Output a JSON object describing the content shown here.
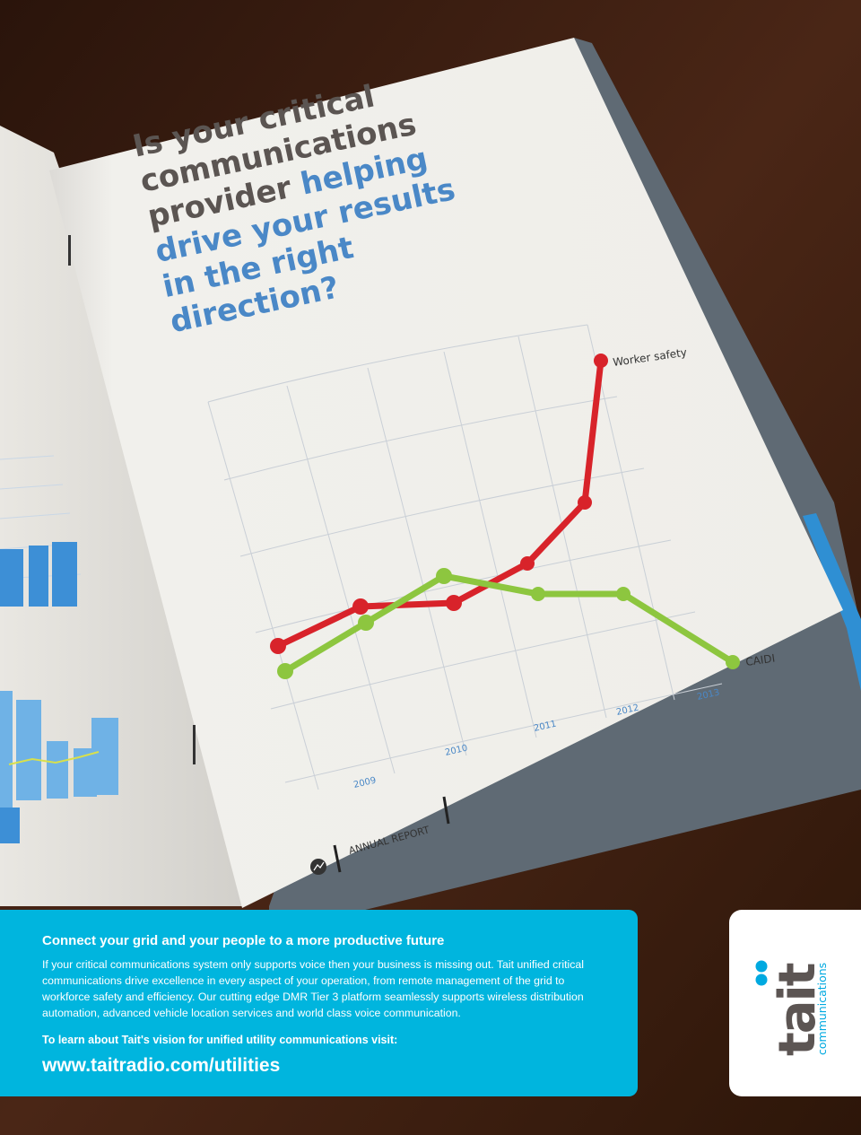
{
  "photo": {
    "headline_dark": "Is your critical communications provider",
    "headline_blue": "helping drive your results in the right direction?",
    "headline_lines": [
      {
        "dark": "Is your critical",
        "blue": ""
      },
      {
        "dark": "communications",
        "blue": ""
      },
      {
        "dark": "provider ",
        "blue": "helping"
      },
      {
        "dark": "",
        "blue": "drive your results"
      },
      {
        "dark": "",
        "blue": "in the right"
      },
      {
        "dark": "",
        "blue": "direction?"
      }
    ],
    "footer_label": "ANNUAL REPORT"
  },
  "chart_data": {
    "type": "line",
    "x": [
      "2009",
      "2010",
      "2011",
      "2012",
      "2013"
    ],
    "series": [
      {
        "name": "Worker safety",
        "color": "#d8232a"
      },
      {
        "name": "CAIDI",
        "color": "#8dc63f"
      }
    ]
  },
  "colors": {
    "banner": "#00b5de",
    "headline_dark": "#5b5552",
    "headline_blue": "#4a88c7",
    "worker_safety": "#d8232a",
    "caidi": "#8dc63f",
    "logo_dark": "#5c5553",
    "logo_blue": "#00a9e0"
  },
  "banner": {
    "headline": "Connect your grid and your people to a more productive future",
    "body": "If your critical communications system only supports voice then your business is missing out. Tait unified critical communications drive excellence in every aspect of your operation, from remote management of the grid to workforce safety and efficiency. Our cutting edge DMR Tier 3 platform seamlessly supports wireless distribution automation, advanced vehicle location services and world class voice communication.",
    "cta": "To learn about Tait's vision for unified utility communications visit:",
    "url": "www.taitradio.com/utilities"
  },
  "logo": {
    "wordmark": "tait",
    "tagline": "communications",
    "icon": "tait-dots-logo"
  }
}
